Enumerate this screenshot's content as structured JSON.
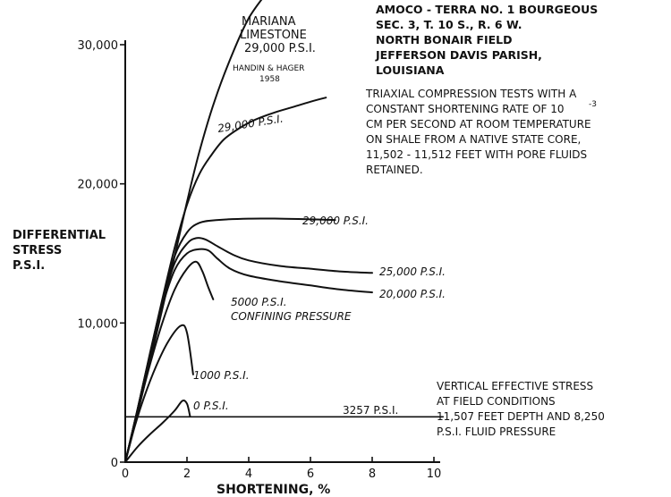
{
  "chart_data": {
    "type": "line",
    "title": "",
    "xlabel": "SHORTENING, %",
    "ylabel": [
      "DIFFERENTIAL",
      "STRESS",
      "P.S.I."
    ],
    "xlim": [
      0,
      10
    ],
    "ylim": [
      0,
      30000
    ],
    "x_ticks": [
      {
        "value": 0,
        "label": "0"
      },
      {
        "value": 2,
        "label": "2"
      },
      {
        "value": 4,
        "label": "4"
      },
      {
        "value": 6,
        "label": "6"
      },
      {
        "value": 8,
        "label": "8"
      },
      {
        "value": 10,
        "label": "10"
      }
    ],
    "y_ticks": [
      {
        "value": 0,
        "label": "0"
      },
      {
        "value": 10000,
        "label": "10,000"
      },
      {
        "value": 20000,
        "label": "20,000"
      },
      {
        "value": 30000,
        "label": "30,000"
      }
    ],
    "grid": false,
    "legend": "none",
    "series": [
      {
        "id": "limestone",
        "labels": [
          "MARIANA",
          "LIMESTONE",
          "29,000 P.S.I."
        ],
        "x": [
          0,
          0.4,
          0.8,
          1.2,
          1.6,
          2.0,
          2.4,
          2.9,
          3.5,
          4.0,
          4.5
        ],
        "y": [
          0,
          3500,
          7200,
          11000,
          14800,
          18700,
          22300,
          26000,
          29500,
          31900,
          33500
        ]
      },
      {
        "id": "p29000-upper",
        "labels": [
          "29,000 P.S.I."
        ],
        "x": [
          0,
          0.4,
          0.8,
          1.2,
          1.6,
          2.0,
          2.4,
          2.8,
          3.2,
          3.7,
          4.2,
          4.8,
          5.4,
          6.0,
          6.5
        ],
        "y": [
          0,
          3800,
          7800,
          11700,
          15400,
          18500,
          20700,
          22100,
          23200,
          24000,
          24600,
          25100,
          25500,
          25900,
          26200
        ]
      },
      {
        "id": "p29000-lower",
        "labels": [
          "29,000 P.S.I."
        ],
        "x": [
          0,
          0.4,
          0.8,
          1.2,
          1.6,
          2.0,
          2.4,
          3.0,
          4.0,
          5.0,
          6.0,
          6.8
        ],
        "y": [
          0,
          3800,
          7800,
          11600,
          14800,
          16500,
          17200,
          17400,
          17500,
          17500,
          17450,
          17400
        ]
      },
      {
        "id": "p25000",
        "labels": [
          "25,000 P.S.I."
        ],
        "x": [
          0,
          0.4,
          0.8,
          1.2,
          1.6,
          2.0,
          2.3,
          2.6,
          3.0,
          3.5,
          4.0,
          5.0,
          6.0,
          7.0,
          8.0
        ],
        "y": [
          0,
          3800,
          7700,
          11400,
          14300,
          15700,
          16100,
          16000,
          15500,
          14900,
          14500,
          14100,
          13900,
          13700,
          13600
        ]
      },
      {
        "id": "p20000",
        "labels": [
          "20,000 P.S.I."
        ],
        "x": [
          0,
          0.4,
          0.8,
          1.2,
          1.6,
          2.0,
          2.4,
          2.7,
          3.0,
          3.4,
          4.0,
          5.0,
          6.0,
          7.0,
          8.0
        ],
        "y": [
          0,
          3800,
          7700,
          11200,
          13800,
          15000,
          15300,
          15200,
          14600,
          13900,
          13400,
          13000,
          12700,
          12400,
          12200
        ]
      },
      {
        "id": "p5000",
        "labels": [
          "5000 P.S.I.",
          "CONFINING PRESSURE"
        ],
        "x": [
          0,
          0.4,
          0.8,
          1.2,
          1.6,
          2.0,
          2.3,
          2.5,
          2.7,
          2.85
        ],
        "y": [
          0,
          3600,
          7000,
          10000,
          12400,
          13900,
          14400,
          13700,
          12500,
          11700
        ]
      },
      {
        "id": "p1000",
        "labels": [
          "1000 P.S.I."
        ],
        "x": [
          0,
          0.3,
          0.6,
          1.0,
          1.4,
          1.8,
          2.0,
          2.2
        ],
        "y": [
          0,
          2500,
          4600,
          6900,
          8700,
          9800,
          9300,
          6300
        ]
      },
      {
        "id": "p0",
        "labels": [
          "0 P.S.I."
        ],
        "x": [
          0,
          0.4,
          0.8,
          1.2,
          1.6,
          1.85,
          2.0,
          2.1
        ],
        "y": [
          0,
          1100,
          2000,
          2800,
          3700,
          4400,
          4200,
          3300
        ]
      }
    ],
    "reference_line": {
      "y": 3257,
      "x": [
        0,
        10.3
      ],
      "label": "3257 P.S.I."
    },
    "annotations": {
      "handin": [
        "HANDIN & HAGER",
        "1958"
      ],
      "well": [
        "AMOCO - TERRA NO. 1 BOURGEOUS",
        "SEC. 3, T. 10 S., R. 6 W.",
        "NORTH BONAIR FIELD",
        "JEFFERSON DAVIS PARISH,",
        "LOUISIANA"
      ],
      "test": [
        "TRIAXIAL COMPRESSION TESTS WITH A",
        "CONSTANT SHORTENING RATE OF 10",
        "CM PER SECOND AT ROOM TEMPERATURE",
        "ON SHALE FROM A NATIVE STATE CORE,",
        "11,502 - 11,512 FEET WITH PORE FLUIDS",
        "RETAINED."
      ],
      "test_exponent": "-3",
      "field": [
        "VERTICAL EFFECTIVE STRESS",
        "AT FIELD CONDITIONS",
        "11,507 FEET DEPTH AND 8,250",
        "P.S.I. FLUID PRESSURE"
      ]
    }
  }
}
